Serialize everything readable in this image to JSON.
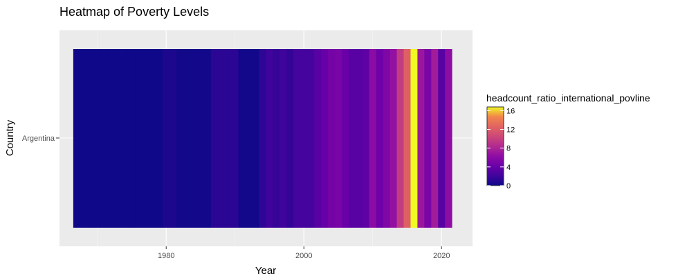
{
  "chart_data": {
    "type": "heatmap",
    "title": "Heatmap of Poverty Levels",
    "xlabel": "Year",
    "ylabel": "Country",
    "categories_y": [
      "Argentina"
    ],
    "x_ticks": [
      1980,
      2000,
      2020
    ],
    "xlim": [
      1964.5,
      2024.5
    ],
    "grid": true,
    "colorscale": "plasma",
    "color_range": [
      0,
      16.8
    ],
    "legend": {
      "title": "headcount_ratio_international_povline",
      "ticks": [
        0,
        4,
        8,
        12,
        16
      ],
      "placement": "right"
    },
    "series": [
      {
        "name": "Argentina",
        "x": [
          1967,
          1968,
          1969,
          1970,
          1971,
          1972,
          1973,
          1974,
          1975,
          1976,
          1977,
          1978,
          1979,
          1980,
          1981,
          1982,
          1983,
          1984,
          1985,
          1986,
          1987,
          1988,
          1989,
          1990,
          1991,
          1992,
          1993,
          1994,
          1995,
          1996,
          1997,
          1998,
          1999,
          2000,
          2001,
          2002,
          2003,
          2004,
          2005,
          2006,
          2007,
          2008,
          2009,
          2010,
          2011,
          2012,
          2013,
          2014,
          2015,
          2016,
          2017,
          2018,
          2019,
          2020,
          2021
        ],
        "values": [
          0.1,
          0.1,
          0.1,
          0.1,
          0.1,
          0.1,
          0.1,
          0.1,
          0.1,
          0.1,
          0.1,
          0.1,
          0.1,
          0.6,
          0.6,
          0.2,
          0.2,
          0.2,
          0.2,
          0.2,
          1.2,
          1.2,
          1.2,
          1.2,
          0.2,
          0.2,
          0.2,
          1.3,
          2.0,
          1.6,
          2.0,
          1.5,
          2.3,
          2.3,
          2.3,
          3.3,
          4.1,
          4.8,
          5.0,
          4.2,
          3.3,
          3.3,
          3.6,
          6.1,
          4.4,
          5.4,
          6.5,
          9.7,
          12.3,
          16.8,
          7.0,
          5.1,
          7.4,
          3.3,
          6.2
        ]
      }
    ]
  }
}
